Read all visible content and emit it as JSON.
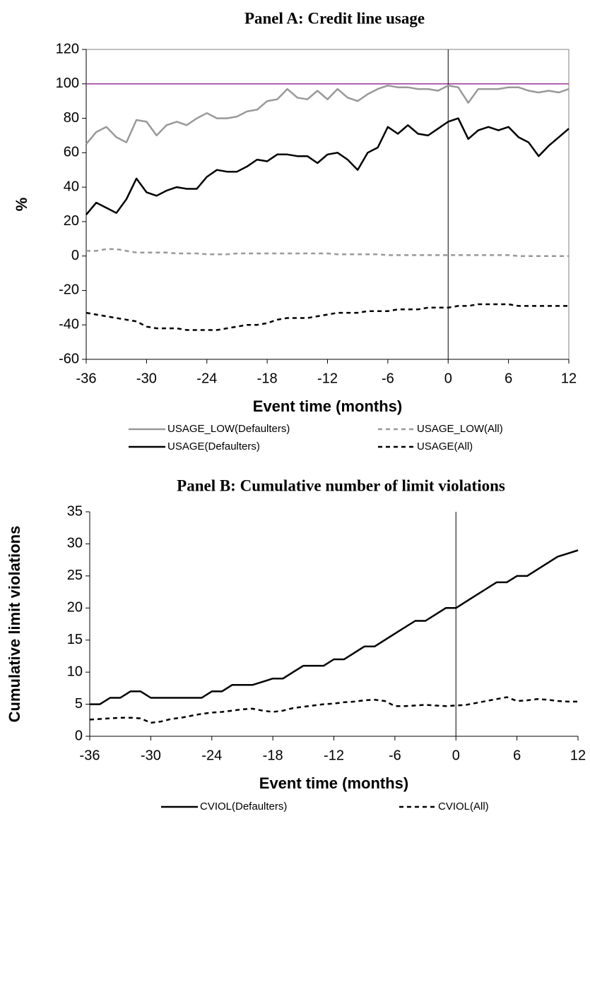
{
  "chart_data": [
    {
      "type": "line",
      "title": "Panel A: Credit line usage",
      "xlabel": "Event time (months)",
      "ylabel": "%",
      "x": [
        -36,
        -35,
        -34,
        -33,
        -32,
        -31,
        -30,
        -29,
        -28,
        -27,
        -26,
        -25,
        -24,
        -23,
        -22,
        -21,
        -20,
        -19,
        -18,
        -17,
        -16,
        -15,
        -14,
        -13,
        -12,
        -11,
        -10,
        -9,
        -8,
        -7,
        -6,
        -5,
        -4,
        -3,
        -2,
        -1,
        0,
        1,
        2,
        3,
        4,
        5,
        6,
        7,
        8,
        9,
        10,
        11,
        12
      ],
      "xlim": [
        -36,
        12
      ],
      "xticks": [
        -36,
        -30,
        -24,
        -18,
        -12,
        -6,
        0,
        6,
        12
      ],
      "ylim": [
        -60,
        120
      ],
      "yticks": [
        -60,
        -40,
        -20,
        0,
        20,
        40,
        60,
        80,
        100,
        120
      ],
      "hline": {
        "value": 100,
        "color": "#993399"
      },
      "vline": 0,
      "series": [
        {
          "name": "USAGE_LOW(Defaulters)",
          "color": "#999999",
          "dashed": false,
          "values": [
            65,
            72,
            75,
            69,
            66,
            79,
            78,
            70,
            76,
            78,
            76,
            80,
            83,
            80,
            80,
            81,
            84,
            85,
            90,
            91,
            97,
            92,
            91,
            96,
            91,
            97,
            92,
            90,
            94,
            97,
            99,
            98,
            98,
            97,
            97,
            96,
            99,
            98,
            89,
            97,
            97,
            97,
            98,
            98,
            96,
            95,
            96,
            95,
            97
          ]
        },
        {
          "name": "USAGE_LOW(All)",
          "color": "#999999",
          "dashed": true,
          "values": [
            3,
            3,
            4,
            4,
            3,
            2,
            2,
            2,
            2,
            1.5,
            1.5,
            1.5,
            1,
            1,
            1,
            1.5,
            1.5,
            1.5,
            1.5,
            1.5,
            1.5,
            1.5,
            1.5,
            1.5,
            1.5,
            1,
            1,
            1,
            1,
            1,
            0.5,
            0.5,
            0.5,
            0.5,
            0.5,
            0.5,
            0.5,
            0.5,
            0.5,
            0.5,
            0.5,
            0.5,
            0.5,
            0,
            0,
            0,
            0,
            0,
            0
          ]
        },
        {
          "name": "USAGE(Defaulters)",
          "color": "#000000",
          "dashed": false,
          "values": [
            24,
            31,
            28,
            25,
            33,
            45,
            37,
            35,
            38,
            40,
            39,
            39,
            46,
            50,
            49,
            49,
            52,
            56,
            55,
            59,
            59,
            58,
            58,
            54,
            59,
            60,
            56,
            50,
            60,
            63,
            75,
            71,
            76,
            71,
            70,
            74,
            78,
            80,
            68,
            73,
            75,
            73,
            75,
            69,
            66,
            58,
            64,
            69,
            74
          ]
        },
        {
          "name": "USAGE(All)",
          "color": "#000000",
          "dashed": true,
          "values": [
            -33,
            -34,
            -35,
            -36,
            -37,
            -38,
            -41,
            -42,
            -42,
            -42,
            -43,
            -43,
            -43,
            -43,
            -42,
            -41,
            -40,
            -40,
            -39,
            -37,
            -36,
            -36,
            -36,
            -35,
            -34,
            -33,
            -33,
            -33,
            -32,
            -32,
            -32,
            -31,
            -31,
            -31,
            -30,
            -30,
            -30,
            -29,
            -29,
            -28,
            -28,
            -28,
            -28,
            -29,
            -29,
            -29,
            -29,
            -29,
            -29
          ]
        }
      ]
    },
    {
      "type": "line",
      "title": "Panel B: Cumulative number of limit violations",
      "xlabel": "Event time (months)",
      "ylabel": "Cumulative limit violations",
      "x": [
        -36,
        -35,
        -34,
        -33,
        -32,
        -31,
        -30,
        -29,
        -28,
        -27,
        -26,
        -25,
        -24,
        -23,
        -22,
        -21,
        -20,
        -19,
        -18,
        -17,
        -16,
        -15,
        -14,
        -13,
        -12,
        -11,
        -10,
        -9,
        -8,
        -7,
        -6,
        -5,
        -4,
        -3,
        -2,
        -1,
        0,
        1,
        2,
        3,
        4,
        5,
        6,
        7,
        8,
        9,
        10,
        11,
        12
      ],
      "xlim": [
        -36,
        12
      ],
      "xticks": [
        -36,
        -30,
        -24,
        -18,
        -12,
        -6,
        0,
        6,
        12
      ],
      "ylim": [
        0,
        35
      ],
      "yticks": [
        0,
        5,
        10,
        15,
        20,
        25,
        30,
        35
      ],
      "vline": 0,
      "series": [
        {
          "name": "CVIOL(Defaulters)",
          "color": "#000000",
          "dashed": false,
          "values": [
            5,
            5,
            6,
            6,
            7,
            7,
            6,
            6,
            6,
            6,
            6,
            6,
            7,
            7,
            8,
            8,
            8,
            8.5,
            9,
            9,
            10,
            11,
            11,
            11,
            12,
            12,
            13,
            14,
            14,
            15,
            16,
            17,
            18,
            18,
            19,
            20,
            20,
            21,
            22,
            23,
            24,
            24,
            25,
            25,
            26,
            27,
            28,
            28.5,
            29
          ]
        },
        {
          "name": "CVIOL(All)",
          "color": "#000000",
          "dashed": true,
          "values": [
            2.6,
            2.7,
            2.8,
            2.9,
            2.9,
            2.8,
            2.1,
            2.3,
            2.7,
            2.9,
            3.2,
            3.5,
            3.7,
            3.8,
            4.0,
            4.2,
            4.3,
            4.0,
            3.8,
            4.0,
            4.4,
            4.6,
            4.8,
            5.0,
            5.1,
            5.3,
            5.4,
            5.6,
            5.7,
            5.5,
            4.7,
            4.7,
            4.8,
            4.9,
            4.8,
            4.7,
            4.8,
            4.9,
            5.2,
            5.5,
            5.8,
            6.1,
            5.5,
            5.6,
            5.8,
            5.7,
            5.5,
            5.4,
            5.4
          ]
        }
      ]
    }
  ]
}
